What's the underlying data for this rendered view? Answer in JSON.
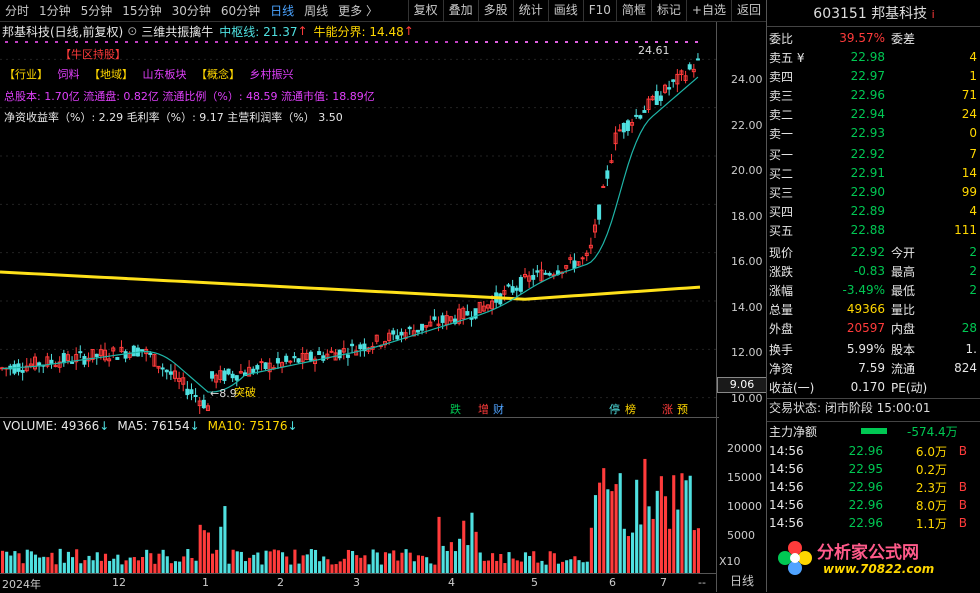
{
  "toolbar": {
    "timeframes": [
      "分时",
      "1分钟",
      "5分钟",
      "15分钟",
      "30分钟",
      "60分钟",
      "日线",
      "周线",
      "更多 〉"
    ],
    "active_timeframe": "日线",
    "buttons": [
      "复权",
      "叠加",
      "多股",
      "统计",
      "画线",
      "F10",
      "简框",
      "标记",
      "+自选",
      "返回"
    ]
  },
  "title": {
    "stock": "邦基科技(日线,前复权)",
    "indicator": "三维共振擒牛",
    "center_line_label": "中枢线: 21.37",
    "center_arrow": "↑",
    "bull_label": "牛能分界: 14.48",
    "bull_arrow": "↑"
  },
  "overlay": {
    "tag": "【牛区持股】",
    "industry_line": [
      "【行业】",
      "饲料",
      "【地域】",
      "山东板块",
      "【概念】",
      "乡村振兴"
    ],
    "capital_line": "总股本: 1.70亿  流通盘: 0.82亿  流通比例（%）: 48.59  流通市值: 18.89亿",
    "ratio_line": "净资收益率（%）: 2.29  毛利率（%）: 9.17  主营利润率（%）  3.50",
    "high_label": "24.61",
    "low_label": "8.9",
    "breakout_label": "突破"
  },
  "markers": [
    {
      "text": "跌",
      "color": "#00c853"
    },
    {
      "text": "增",
      "color": "#ff3b3b"
    },
    {
      "text": "财",
      "color": "#4fa3ff"
    },
    {
      "text": "停",
      "color": "#4fe0e0"
    },
    {
      "text": "榜",
      "color": "#ffd700"
    },
    {
      "text": "涨",
      "color": "#ff3b3b"
    },
    {
      "text": "预",
      "color": "#ffd700"
    }
  ],
  "price_axis": {
    "ticks": [
      "24.00",
      "22.00",
      "20.00",
      "18.00",
      "16.00",
      "14.00",
      "12.00",
      "10.00"
    ],
    "current_box": "9.06"
  },
  "volume": {
    "label": "VOLUME: 49366",
    "ma5": "MA5: 76154",
    "ma10": "MA10: 75176",
    "arrow": "↓",
    "ticks": [
      "20000",
      "15000",
      "10000",
      "5000"
    ],
    "unit": "X10"
  },
  "xaxis": {
    "labels": [
      "2024年",
      "12",
      "1",
      "2",
      "3",
      "4",
      "5",
      "6",
      "7"
    ],
    "period_button": "日线"
  },
  "right_panel": {
    "code": "603151",
    "name": "邦基科技",
    "weibi_label": "委比",
    "weibi_value": "39.57%",
    "weicha_label": "委差",
    "asks": [
      {
        "label": "卖五 ¥",
        "price": "22.98",
        "vol": "4"
      },
      {
        "label": "卖四",
        "price": "22.97",
        "vol": "1"
      },
      {
        "label": "卖三",
        "price": "22.96",
        "vol": "71"
      },
      {
        "label": "卖二",
        "price": "22.94",
        "vol": "24"
      },
      {
        "label": "卖一",
        "price": "22.93",
        "vol": "0"
      }
    ],
    "bids": [
      {
        "label": "买一",
        "price": "22.92",
        "vol": "7"
      },
      {
        "label": "买二",
        "price": "22.91",
        "vol": "14"
      },
      {
        "label": "买三",
        "price": "22.90",
        "vol": "99"
      },
      {
        "label": "买四",
        "price": "22.89",
        "vol": "4"
      },
      {
        "label": "买五",
        "price": "22.88",
        "vol": "111"
      }
    ],
    "quote": [
      {
        "l1": "现价",
        "v1": "22.92",
        "l2": "今开",
        "v2": "2"
      },
      {
        "l1": "涨跌",
        "v1": "-0.83",
        "l2": "最高",
        "v2": "2"
      },
      {
        "l1": "涨幅",
        "v1": "-3.49%",
        "l2": "最低",
        "v2": "2"
      },
      {
        "l1": "总量",
        "v1": "49366",
        "l2": "量比",
        "v2": ""
      },
      {
        "l1": "外盘",
        "v1": "20597",
        "l2": "内盘",
        "v2": "28"
      }
    ],
    "stats": [
      {
        "l1": "换手",
        "v1": "5.99%",
        "l2": "股本",
        "v2": "1."
      },
      {
        "l1": "净资",
        "v1": "7.59",
        "l2": "流通",
        "v2": "824"
      },
      {
        "l1": "收益(一)",
        "v1": "0.170",
        "l2": "PE(动)",
        "v2": ""
      }
    ],
    "trade_status": "交易状态: 闭市阶段 15:00:01",
    "main_flow_label": "主力净额",
    "main_flow_value": "-574.4万",
    "ticks": [
      {
        "time": "14:56",
        "price": "22.96",
        "vol": "6.0万",
        "side": "B"
      },
      {
        "time": "14:56",
        "price": "22.95",
        "vol": "0.2万",
        "side": ""
      },
      {
        "time": "14:56",
        "price": "22.96",
        "vol": "2.3万",
        "side": "B"
      },
      {
        "time": "14:56",
        "price": "22.96",
        "vol": "8.0万",
        "side": "B"
      },
      {
        "time": "14:56",
        "price": "22.96",
        "vol": "1.1万",
        "side": "B"
      }
    ],
    "watermark_text": "分析家公式网",
    "watermark_url": "www.70822.com"
  }
}
